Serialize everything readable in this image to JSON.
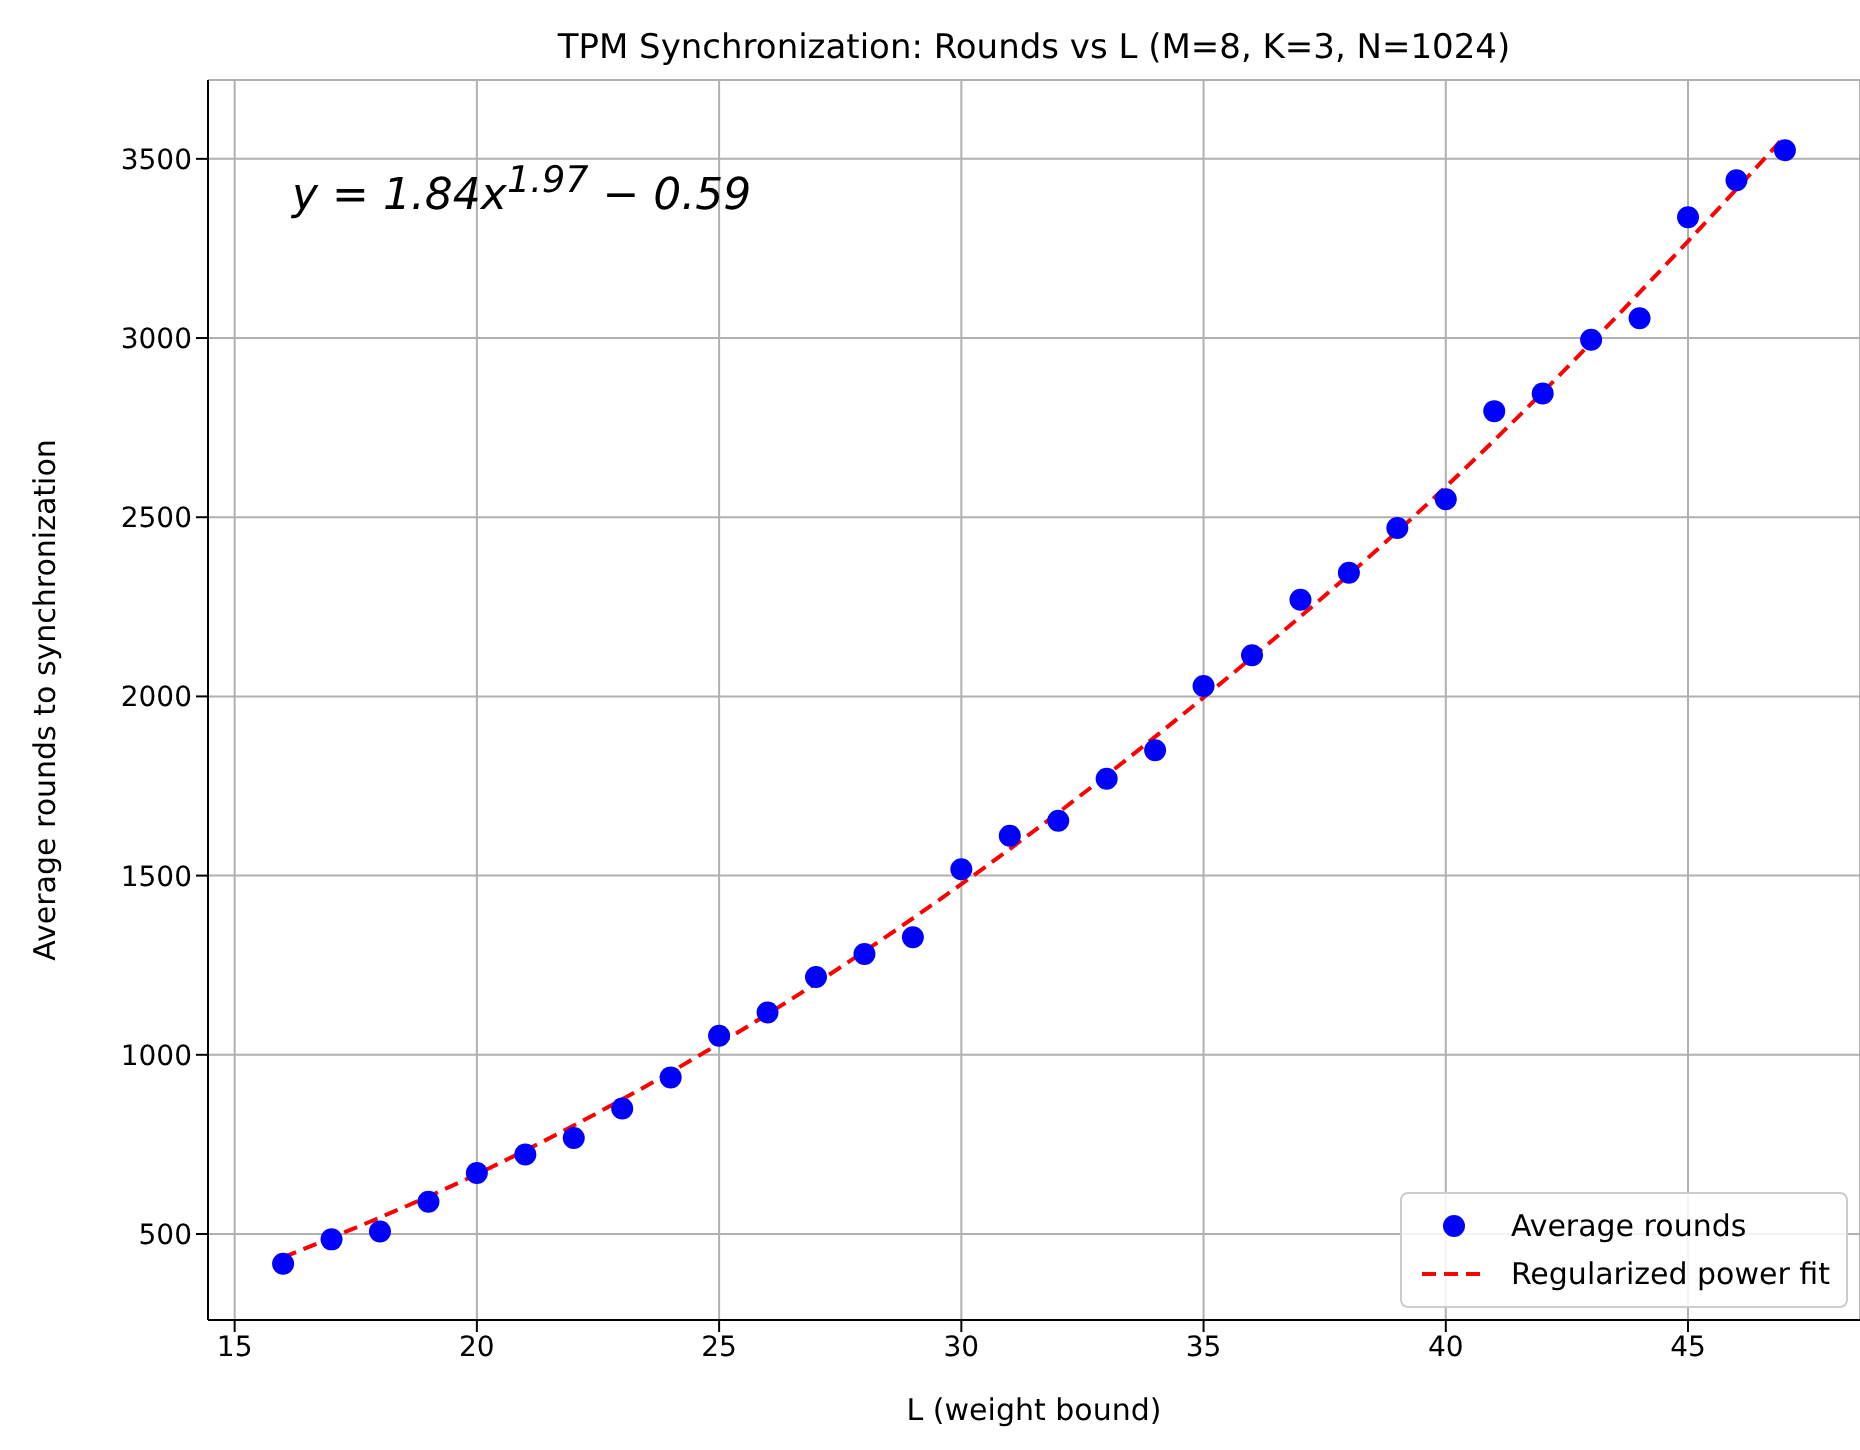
{
  "chart_data": {
    "type": "scatter",
    "title": "TPM Synchronization: Rounds vs L (M=8, K=3, N=1024)",
    "xlabel": "L (weight bound)",
    "ylabel": "Average rounds to synchronization",
    "annotations": [
      "y = 1.84x$^{1.97}$ − 0.59"
    ],
    "series": [
      {
        "name": "Average rounds",
        "marker": "circle",
        "color": "#0000ff",
        "x": [
          16,
          17,
          18,
          19,
          20,
          21,
          22,
          23,
          24,
          25,
          26,
          27,
          28,
          29,
          30,
          31,
          32,
          33,
          34,
          35,
          36,
          37,
          38,
          39,
          40,
          41,
          42,
          43,
          44,
          45,
          46,
          47
        ],
        "values": [
          417,
          485,
          507,
          590,
          670,
          722,
          768,
          850,
          937,
          1053,
          1118,
          1217,
          1281,
          1328,
          1518,
          1611,
          1653,
          1770,
          1850,
          2029,
          2115,
          2270,
          2345,
          2470,
          2550,
          2796,
          2845,
          2995,
          3055,
          3337,
          3440,
          3524
        ]
      },
      {
        "name": "Regularized power fit",
        "type": "line",
        "color": "#ff0000",
        "line_style": "dashed",
        "x": [
          16,
          20,
          25,
          30,
          35,
          40,
          45,
          47
        ],
        "values": [
          435,
          667,
          1031,
          1476,
          1997,
          2585,
          3270,
          3563
        ]
      }
    ],
    "xlim": [
      14.45,
      48.55
    ],
    "xticks": [
      15,
      20,
      25,
      30,
      35,
      40,
      45
    ],
    "ylim": [
      260,
      3720
    ],
    "yticks": [
      500,
      1000,
      1500,
      2000,
      2500,
      3000,
      3500
    ],
    "grid": true,
    "legend": "bottom right"
  }
}
